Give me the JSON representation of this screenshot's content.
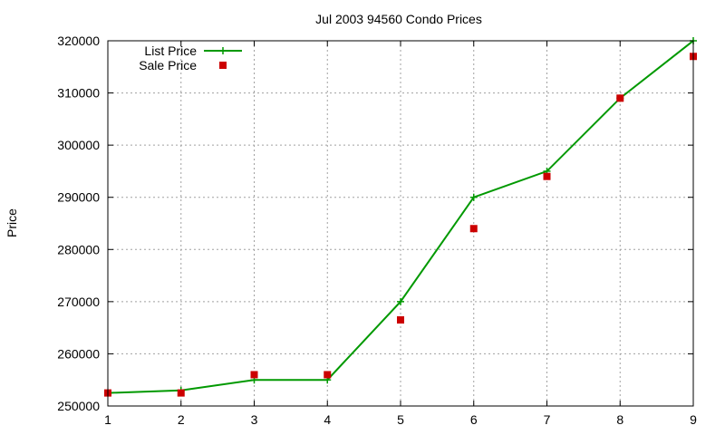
{
  "chart_data": {
    "type": "line",
    "title": "Jul 2003 94560 Condo Prices",
    "xlabel": "",
    "ylabel": "Price",
    "x": [
      1,
      2,
      3,
      4,
      5,
      6,
      7,
      8,
      9
    ],
    "xlim": [
      1,
      9
    ],
    "ylim": [
      250000,
      320000
    ],
    "xticks": [
      "1",
      "2",
      "3",
      "4",
      "5",
      "6",
      "7",
      "8",
      "9"
    ],
    "yticks": [
      "250000",
      "260000",
      "270000",
      "280000",
      "290000",
      "300000",
      "310000",
      "320000"
    ],
    "grid": true,
    "legend_position": "top-left",
    "series": [
      {
        "name": "List Price",
        "style": "line+cross",
        "color": "#009900",
        "values": [
          252500,
          253000,
          255000,
          255000,
          270000,
          290000,
          295000,
          309000,
          320000
        ]
      },
      {
        "name": "Sale Price",
        "style": "square",
        "color": "#cc0000",
        "values": [
          252500,
          252500,
          256000,
          256000,
          266500,
          284000,
          294000,
          309000,
          317000
        ]
      }
    ]
  }
}
